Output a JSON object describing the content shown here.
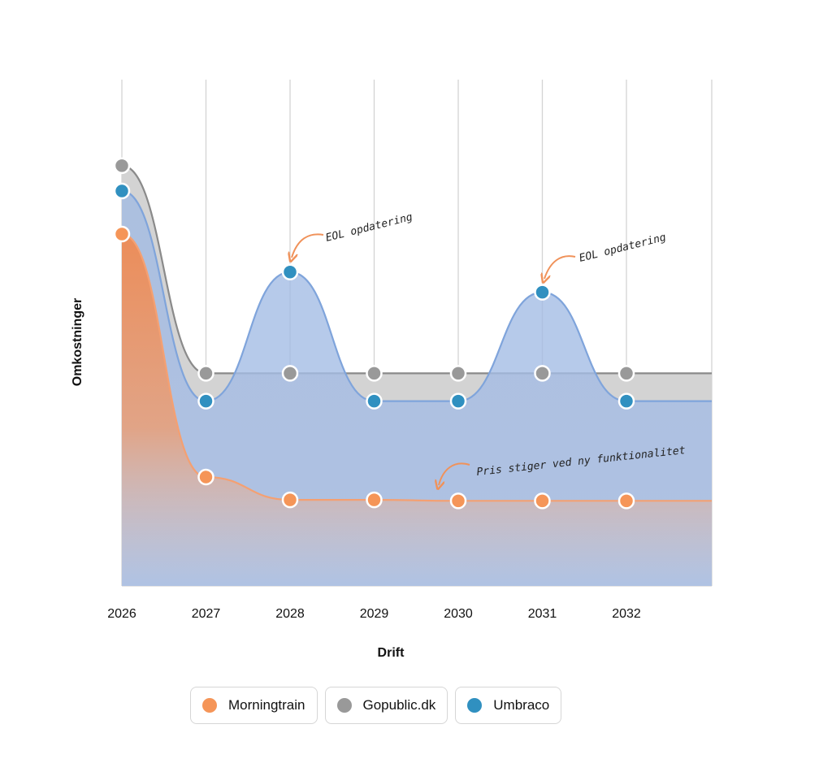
{
  "chart_data": {
    "type": "area",
    "title": "",
    "xlabel": "Drift",
    "ylabel": "Omkostninger",
    "categories": [
      "2026",
      "2027",
      "2028",
      "2029",
      "2030",
      "2031",
      "2032"
    ],
    "ylim": [
      0,
      100
    ],
    "grid": "vertical",
    "legend_placement": "bottom",
    "series": [
      {
        "name": "Gopublic.dk",
        "color": "#999999",
        "values": [
          83,
          42,
          42,
          42,
          42,
          42,
          42
        ]
      },
      {
        "name": "Umbraco",
        "color": "#3090c0",
        "values": [
          78,
          36.5,
          62,
          36.5,
          36.5,
          58,
          36.5
        ]
      },
      {
        "name": "Morningtrain",
        "color": "#f59558",
        "values": [
          69.5,
          21.5,
          17,
          17,
          16.8,
          16.8,
          16.8
        ]
      }
    ],
    "annotations": [
      {
        "text": "EOL opdatering",
        "category": "2028",
        "series": "Umbraco"
      },
      {
        "text": "EOL opdatering",
        "category": "2031",
        "series": "Umbraco"
      },
      {
        "text": "Pris stiger ved ny funktionalitet",
        "category": "2030",
        "series": "Morningtrain"
      }
    ]
  },
  "legend": {
    "items": [
      {
        "label": "Morningtrain",
        "color": "#f59558"
      },
      {
        "label": "Gopublic.dk",
        "color": "#999999"
      },
      {
        "label": "Umbraco",
        "color": "#3090c0"
      }
    ]
  }
}
